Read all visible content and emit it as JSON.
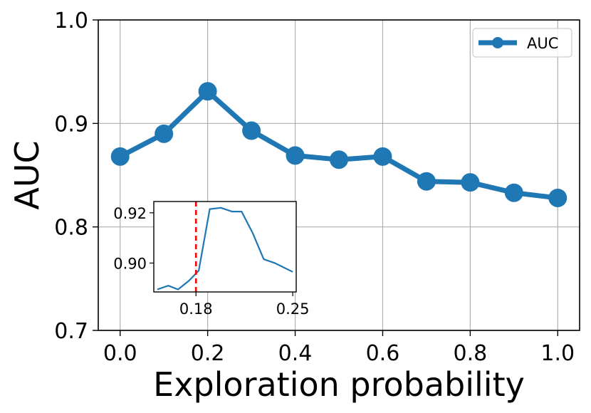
{
  "colors": {
    "series": "#1f77b4",
    "grid": "#b0b0b0",
    "marker_line": "#d62728"
  },
  "chart_data": [
    {
      "type": "line",
      "title": "",
      "xlabel": "Exploration probability",
      "ylabel": "AUC",
      "xlim": [
        -0.05,
        1.05
      ],
      "ylim": [
        0.7,
        1.0
      ],
      "xticks": [
        0.0,
        0.2,
        0.4,
        0.6,
        0.8,
        1.0
      ],
      "xtick_labels": [
        "0.0",
        "0.2",
        "0.4",
        "0.6",
        "0.8",
        "1.0"
      ],
      "yticks": [
        0.7,
        0.8,
        0.9,
        1.0
      ],
      "ytick_labels": [
        "0.7",
        "0.8",
        "0.9",
        "1.0"
      ],
      "grid": true,
      "legend_position": "top-right",
      "series": [
        {
          "name": "AUC",
          "color": "#1f77b4",
          "marker": "circle",
          "x": [
            0.0,
            0.1,
            0.2,
            0.3,
            0.4,
            0.5,
            0.6,
            0.7,
            0.8,
            0.9,
            1.0
          ],
          "y": [
            0.868,
            0.89,
            0.931,
            0.893,
            0.869,
            0.865,
            0.868,
            0.844,
            0.843,
            0.833,
            0.828
          ]
        }
      ]
    },
    {
      "type": "line",
      "title": "",
      "xlabel": "",
      "ylabel": "",
      "xlim": [
        0.1495,
        0.2525
      ],
      "ylim": [
        0.8885,
        0.9245
      ],
      "xticks": [
        0.18,
        0.25
      ],
      "xtick_labels": [
        "0.18",
        "0.25"
      ],
      "yticks": [
        0.9,
        0.92
      ],
      "ytick_labels": [
        "0.90",
        "0.92"
      ],
      "grid": false,
      "vertical_line": {
        "x": 0.18,
        "style": "dashed",
        "color": "#ff0000"
      },
      "series": [
        {
          "color": "#1f77b4",
          "x": [
            0.152,
            0.16,
            0.167,
            0.175,
            0.182,
            0.19,
            0.198,
            0.206,
            0.213,
            0.221,
            0.229,
            0.237,
            0.25
          ],
          "y": [
            0.8895,
            0.891,
            0.8895,
            0.893,
            0.897,
            0.9215,
            0.922,
            0.9205,
            0.9205,
            0.912,
            0.9015,
            0.9,
            0.8965
          ]
        }
      ]
    }
  ]
}
